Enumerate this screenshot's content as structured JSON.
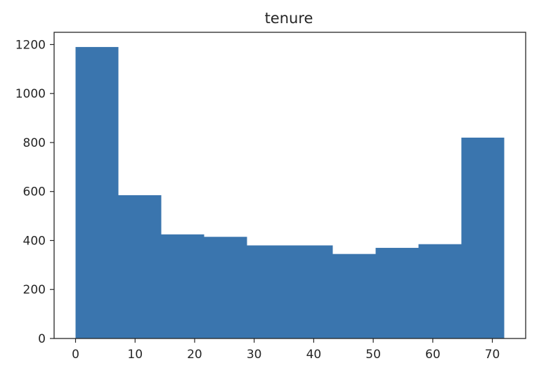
{
  "chart_data": {
    "type": "bar",
    "title": "tenure",
    "xlabel": "",
    "ylabel": "",
    "xlim": [
      -3.6,
      75.6
    ],
    "ylim": [
      0,
      1250
    ],
    "x_ticks": [
      "0",
      "10",
      "20",
      "30",
      "40",
      "50",
      "60",
      "70"
    ],
    "y_ticks": [
      "0",
      "200",
      "400",
      "600",
      "800",
      "1000",
      "1200"
    ],
    "bins": [
      {
        "start": 0.0,
        "end": 7.2,
        "value": 1190
      },
      {
        "start": 7.2,
        "end": 14.4,
        "value": 585
      },
      {
        "start": 14.4,
        "end": 21.6,
        "value": 425
      },
      {
        "start": 21.6,
        "end": 28.8,
        "value": 415
      },
      {
        "start": 28.8,
        "end": 36.0,
        "value": 380
      },
      {
        "start": 36.0,
        "end": 43.2,
        "value": 380
      },
      {
        "start": 43.2,
        "end": 50.4,
        "value": 345
      },
      {
        "start": 50.4,
        "end": 57.6,
        "value": 370
      },
      {
        "start": 57.6,
        "end": 64.8,
        "value": 385
      },
      {
        "start": 64.8,
        "end": 72.0,
        "value": 820
      }
    ],
    "grid": false,
    "colors": {
      "bar": "#3a75ae",
      "axis": "#262626",
      "background": "#ffffff"
    }
  }
}
